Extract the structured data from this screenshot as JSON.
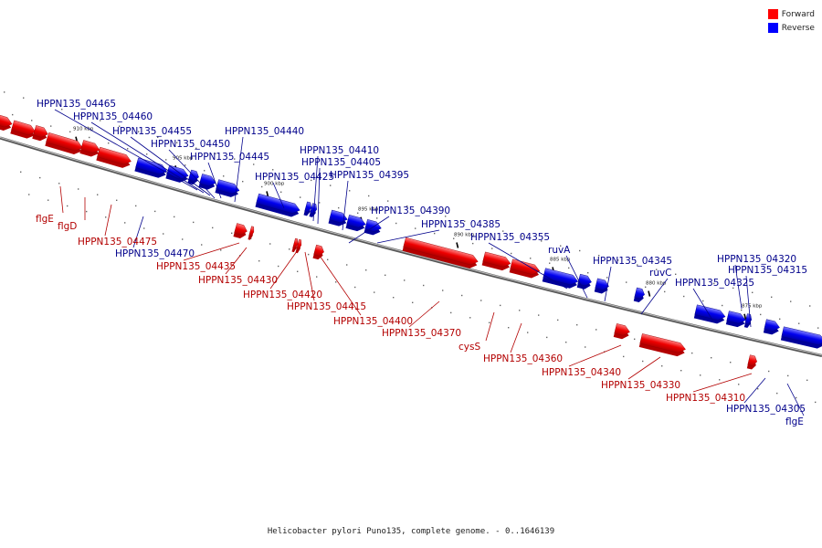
{
  "legend": {
    "forward_label": "Forward",
    "reverse_label": "Reverse",
    "forward_color": "#ff0000",
    "reverse_color": "#0000ff"
  },
  "footer": {
    "title": "Helicobacter pylori Puno135, complete genome. - 0..1646139"
  },
  "scale_ticks": [
    "910 kbp",
    "905 kbp",
    "900 kbp",
    "895 kbp",
    "890 kbp",
    "885 kbp",
    "880 kbp",
    "875 kbp"
  ],
  "genes": [
    {
      "label": "flgE",
      "strand": "forward"
    },
    {
      "label": "flgD",
      "strand": "forward"
    },
    {
      "label": "HPPN135_04475",
      "strand": "forward"
    },
    {
      "label": "HPPN135_04470",
      "strand": "reverse"
    },
    {
      "label": "HPPN135_04465",
      "strand": "reverse"
    },
    {
      "label": "HPPN135_04460",
      "strand": "reverse"
    },
    {
      "label": "HPPN135_04455",
      "strand": "reverse"
    },
    {
      "label": "HPPN135_04450",
      "strand": "reverse"
    },
    {
      "label": "HPPN135_04445",
      "strand": "reverse"
    },
    {
      "label": "HPPN135_04440",
      "strand": "reverse"
    },
    {
      "label": "HPPN135_04435",
      "strand": "forward"
    },
    {
      "label": "HPPN135_04430",
      "strand": "forward"
    },
    {
      "label": "HPPN135_04425",
      "strand": "reverse"
    },
    {
      "label": "HPPN135_04420",
      "strand": "forward"
    },
    {
      "label": "HPPN135_04415",
      "strand": "forward"
    },
    {
      "label": "HPPN135_04410",
      "strand": "reverse"
    },
    {
      "label": "HPPN135_04405",
      "strand": "reverse"
    },
    {
      "label": "HPPN135_04400",
      "strand": "forward"
    },
    {
      "label": "HPPN135_04395",
      "strand": "reverse"
    },
    {
      "label": "HPPN135_04390",
      "strand": "reverse"
    },
    {
      "label": "HPPN135_04385",
      "strand": "reverse"
    },
    {
      "label": "HPPN135_04370",
      "strand": "forward"
    },
    {
      "label": "cysS",
      "strand": "forward"
    },
    {
      "label": "HPPN135_04360",
      "strand": "forward"
    },
    {
      "label": "HPPN135_04355",
      "strand": "reverse"
    },
    {
      "label": "ruvA",
      "strand": "reverse"
    },
    {
      "label": "HPPN135_04345",
      "strand": "reverse"
    },
    {
      "label": "HPPN135_04340",
      "strand": "forward"
    },
    {
      "label": "ruvC",
      "strand": "reverse"
    },
    {
      "label": "HPPN135_04330",
      "strand": "forward"
    },
    {
      "label": "HPPN135_04325",
      "strand": "reverse"
    },
    {
      "label": "HPPN135_04320",
      "strand": "reverse"
    },
    {
      "label": "HPPN135_04315",
      "strand": "reverse"
    },
    {
      "label": "HPPN135_04310",
      "strand": "forward"
    },
    {
      "label": "HPPN135_04305",
      "strand": "reverse"
    },
    {
      "label": "flgE",
      "strand": "reverse"
    }
  ]
}
